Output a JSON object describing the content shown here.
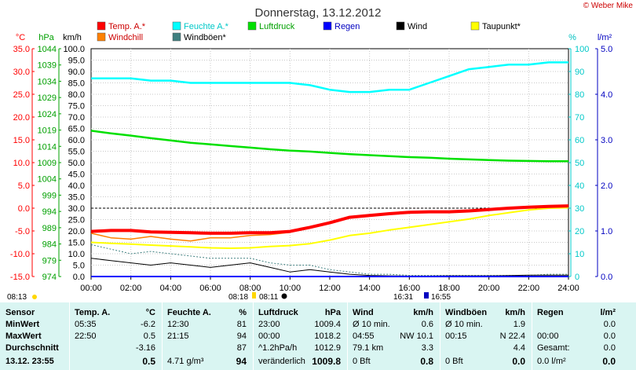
{
  "title": "Donnerstag, 13.12.2012",
  "copyright": "© Weber Mike",
  "colors": {
    "temp": "#ff0000",
    "windchill": "#ff8000",
    "feuchte": "#00ffff",
    "windboeen": "#408080",
    "luftdruck": "#00e000",
    "regen": "#0000ff",
    "wind": "#000000",
    "taupunkt": "#ffff00"
  },
  "legend": [
    {
      "label": "Temp. A.*",
      "color": "#ff0000"
    },
    {
      "label": "Feuchte A.*",
      "color": "#00ffff"
    },
    {
      "label": "Luftdruck",
      "color": "#00e000"
    },
    {
      "label": "Regen",
      "color": "#0000ff"
    },
    {
      "label": "Wind",
      "color": "#000000"
    },
    {
      "label": "Taupunkt*",
      "color": "#ffff00"
    },
    {
      "label": "Windchill",
      "color": "#ff8000"
    },
    {
      "label": "Windböen*",
      "color": "#408080"
    }
  ],
  "axis_units": {
    "temp": "°C",
    "pressure": "hPa",
    "wind": "km/h",
    "humidity": "%",
    "rain": "l/m²"
  },
  "sun_markers": {
    "sunrise": "08:13",
    "sunset": "16:31",
    "moon1": "08:18",
    "moon2": "08:11",
    "moon3": "16:55"
  },
  "chart_data": {
    "type": "line",
    "title": "Donnerstag, 13.12.2012",
    "x": [
      "00:00",
      "01:00",
      "02:00",
      "03:00",
      "04:00",
      "05:00",
      "06:00",
      "07:00",
      "08:00",
      "09:00",
      "10:00",
      "11:00",
      "12:00",
      "13:00",
      "14:00",
      "15:00",
      "16:00",
      "17:00",
      "18:00",
      "19:00",
      "20:00",
      "21:00",
      "22:00",
      "23:00",
      "24:00"
    ],
    "x_ticks": [
      "00:00",
      "02:00",
      "04:00",
      "06:00",
      "08:00",
      "10:00",
      "12:00",
      "14:00",
      "16:00",
      "18:00",
      "20:00",
      "22:00",
      "24:00"
    ],
    "axes": {
      "temp": {
        "unit": "°C",
        "range": [
          -15,
          35
        ],
        "ticks": [
          "35.0",
          "30.0",
          "25.0",
          "20.0",
          "15.0",
          "10.0",
          "5.0",
          "0.0",
          "-5.0",
          "-10.0",
          "-15.0"
        ]
      },
      "pressure": {
        "unit": "hPa",
        "range": [
          974,
          1044
        ],
        "ticks": [
          "1044",
          "1039",
          "1034",
          "1029",
          "1024",
          "1019",
          "1014",
          "1009",
          "1004",
          "999",
          "994",
          "989",
          "984",
          "979",
          "974"
        ]
      },
      "wind": {
        "unit": "km/h",
        "range": [
          0,
          100
        ],
        "ticks": [
          "100.0",
          "95.0",
          "90.0",
          "85.0",
          "80.0",
          "75.0",
          "70.0",
          "65.0",
          "60.0",
          "55.0",
          "50.0",
          "45.0",
          "40.0",
          "35.0",
          "30.0",
          "25.0",
          "20.0",
          "15.0",
          "10.0",
          "5.0",
          "0.0"
        ]
      },
      "humidity": {
        "unit": "%",
        "range": [
          0,
          100
        ],
        "ticks": [
          "100",
          "90",
          "80",
          "70",
          "60",
          "50",
          "40",
          "30",
          "20",
          "10",
          "0"
        ]
      },
      "rain": {
        "unit": "l/m²",
        "range": [
          0,
          5
        ],
        "ticks": [
          "5.0",
          "4.0",
          "3.0",
          "2.0",
          "1.0",
          "0.0"
        ]
      }
    },
    "series": [
      {
        "name": "Temp. A.*",
        "axis": "temp",
        "values": [
          -5.1,
          -4.9,
          -4.9,
          -5.2,
          -5.3,
          -5.4,
          -5.5,
          -5.5,
          -5.4,
          -5.4,
          -5.1,
          -4.2,
          -3.2,
          -2.0,
          -1.6,
          -1.2,
          -0.9,
          -0.8,
          -0.8,
          -0.6,
          -0.3,
          0.0,
          0.2,
          0.4,
          0.5
        ]
      },
      {
        "name": "Feuchte A.*",
        "axis": "humidity",
        "values": [
          87,
          87,
          87,
          86,
          86,
          85,
          85,
          85,
          85,
          85,
          85,
          84,
          82,
          81,
          81,
          82,
          82,
          85,
          88,
          91,
          92,
          93,
          93,
          94,
          94
        ]
      },
      {
        "name": "Luftdruck",
        "axis": "pressure",
        "values": [
          1018.8,
          1018.0,
          1017.3,
          1016.5,
          1015.8,
          1015.1,
          1014.6,
          1014.1,
          1013.6,
          1013.1,
          1012.7,
          1012.4,
          1012.0,
          1011.6,
          1011.3,
          1011.0,
          1010.7,
          1010.5,
          1010.2,
          1010.0,
          1009.8,
          1009.6,
          1009.5,
          1009.4,
          1009.4
        ]
      },
      {
        "name": "Regen",
        "axis": "rain",
        "values": [
          0,
          0,
          0,
          0,
          0,
          0,
          0,
          0,
          0,
          0,
          0,
          0,
          0,
          0,
          0,
          0,
          0,
          0,
          0,
          0,
          0,
          0,
          0,
          0,
          0
        ]
      },
      {
        "name": "Wind",
        "axis": "wind",
        "values": [
          8,
          7,
          6,
          5,
          6,
          5,
          4,
          5,
          6,
          4,
          2,
          3,
          2,
          1,
          0.5,
          0.3,
          0.2,
          0.2,
          0.3,
          0.3,
          0.3,
          0.4,
          0.6,
          0.6,
          0.6
        ]
      },
      {
        "name": "Taupunkt*",
        "axis": "temp",
        "values": [
          -7.5,
          -7.7,
          -7.9,
          -8.1,
          -8.3,
          -8.5,
          -8.7,
          -8.8,
          -8.7,
          -8.4,
          -8.2,
          -7.8,
          -7.0,
          -6.0,
          -5.5,
          -4.8,
          -4.2,
          -3.6,
          -3.0,
          -2.4,
          -1.6,
          -1.0,
          -0.4,
          0.0,
          0.1
        ]
      },
      {
        "name": "Windchill",
        "axis": "temp",
        "values": [
          -5.5,
          -6.5,
          -6.8,
          -6.2,
          -6.8,
          -7.2,
          -6.5,
          -6.5,
          -6.0,
          -5.8,
          -5.3,
          -4.3,
          -3.2,
          -2.0,
          -1.6,
          -1.2,
          -0.9,
          -0.8,
          -0.8,
          -0.6,
          -0.3,
          0.0,
          0.2,
          0.4,
          0.5
        ]
      },
      {
        "name": "Windböen*",
        "axis": "wind",
        "values": [
          14,
          12,
          10,
          11,
          10,
          9,
          8,
          8,
          8,
          6,
          5,
          5,
          3,
          2,
          1,
          1,
          0.5,
          0.5,
          0.5,
          0.5,
          0.5,
          0.5,
          0.5,
          1,
          1
        ]
      }
    ]
  },
  "stats": {
    "rows": [
      "Sensor",
      "MinWert",
      "MaxWert",
      "Durchschnitt",
      "13.12. 23:55"
    ],
    "temp": {
      "header": "Temp. A.",
      "unit": "°C",
      "cells": [
        [
          "05:35",
          "-6.2"
        ],
        [
          "22:50",
          "0.5"
        ],
        [
          "",
          "-3.16"
        ],
        [
          "",
          "0.5"
        ]
      ]
    },
    "feuchte": {
      "header": "Feuchte A.",
      "unit": "%",
      "cells": [
        [
          "12:30",
          "81"
        ],
        [
          "21:15",
          "94"
        ],
        [
          "",
          "87"
        ],
        [
          "4.71 g/m³",
          "94"
        ]
      ]
    },
    "luftdruck": {
      "header": "Luftdruck",
      "unit": "hPa",
      "cells": [
        [
          "23:00",
          "1009.4"
        ],
        [
          "00:00",
          "1018.2"
        ],
        [
          "^1.2hPa/h",
          "1012.9"
        ],
        [
          "veränderlich",
          "1009.8"
        ]
      ]
    },
    "wind": {
      "header": "Wind",
      "unit": "km/h",
      "cells": [
        [
          "Ø 10 min.",
          "0.6"
        ],
        [
          "04:55",
          "NW 10.1"
        ],
        [
          "79.1 km",
          "3.3"
        ],
        [
          "0 Bft",
          "0.8"
        ]
      ]
    },
    "windboeen": {
      "header": "Windböen",
      "unit": "km/h",
      "cells": [
        [
          "Ø 10 min.",
          "1.9"
        ],
        [
          "00:15",
          "N 22.4"
        ],
        [
          "",
          "4.4"
        ],
        [
          "0 Bft",
          "0.0"
        ]
      ]
    },
    "regen": {
      "header": "Regen",
      "unit": "l/m²",
      "cells": [
        [
          "",
          "0.0"
        ],
        [
          "00:00",
          "0.0"
        ],
        [
          "Gesamt:",
          "0.0"
        ],
        [
          "0.0 l/m²",
          "0.0"
        ]
      ]
    }
  }
}
